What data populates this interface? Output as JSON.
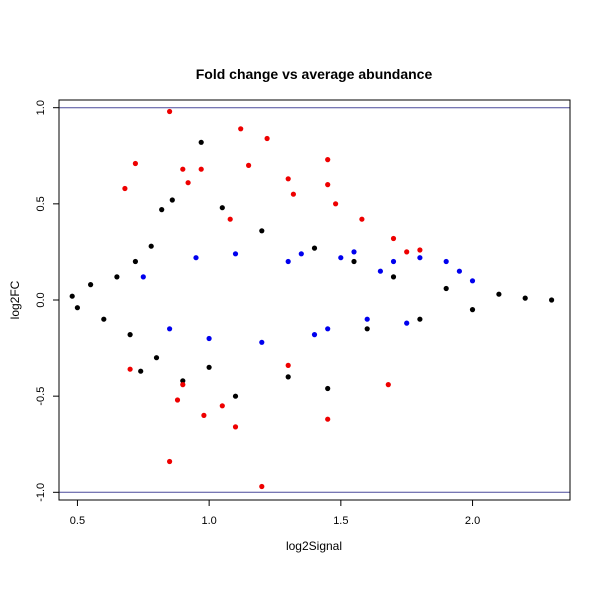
{
  "chart_data": {
    "type": "scatter",
    "title": "Fold change vs average abundance",
    "xlabel": "log2Signal",
    "ylabel": "log2FC",
    "xlim": [
      0.43,
      2.37
    ],
    "ylim": [
      -1.04,
      1.04
    ],
    "x_ticks": [
      0.5,
      1.0,
      1.5,
      2.0
    ],
    "x_tick_labels": [
      "0.5",
      "1.0",
      "1.5",
      "2.0"
    ],
    "y_ticks": [
      -1.0,
      -0.5,
      0.0,
      0.5,
      1.0
    ],
    "y_tick_labels": [
      "-1.0",
      "-0.5",
      "0.0",
      "0.5",
      "1.0"
    ],
    "grid": false,
    "reference_lines": [
      {
        "axis": "y",
        "value": 1.0,
        "color": "#4a4a9c"
      },
      {
        "axis": "y",
        "value": -1.0,
        "color": "#4a4a9c"
      }
    ],
    "series": [
      {
        "color": "#000000",
        "values": [
          [
            0.48,
            0.02
          ],
          [
            0.5,
            -0.04
          ],
          [
            0.55,
            0.08
          ],
          [
            0.6,
            -0.1
          ],
          [
            0.65,
            0.12
          ],
          [
            0.7,
            -0.18
          ],
          [
            0.72,
            0.2
          ],
          [
            0.78,
            0.28
          ],
          [
            0.8,
            -0.3
          ],
          [
            0.82,
            0.47
          ],
          [
            0.86,
            0.52
          ],
          [
            0.9,
            -0.42
          ],
          [
            0.97,
            0.82
          ],
          [
            1.0,
            -0.35
          ],
          [
            1.05,
            0.48
          ],
          [
            1.1,
            -0.5
          ],
          [
            1.2,
            0.36
          ],
          [
            1.3,
            -0.4
          ],
          [
            1.4,
            0.27
          ],
          [
            1.45,
            -0.46
          ],
          [
            1.55,
            0.2
          ],
          [
            1.6,
            -0.15
          ],
          [
            1.7,
            0.12
          ],
          [
            1.8,
            -0.1
          ],
          [
            1.9,
            0.06
          ],
          [
            2.0,
            -0.05
          ],
          [
            2.1,
            0.03
          ],
          [
            2.2,
            0.01
          ],
          [
            2.3,
            0.0
          ],
          [
            0.74,
            -0.37
          ]
        ]
      },
      {
        "color": "#0000ee",
        "values": [
          [
            0.75,
            0.12
          ],
          [
            0.85,
            -0.15
          ],
          [
            0.95,
            0.22
          ],
          [
            1.0,
            -0.2
          ],
          [
            1.1,
            0.24
          ],
          [
            1.2,
            -0.22
          ],
          [
            1.3,
            0.2
          ],
          [
            1.4,
            -0.18
          ],
          [
            1.5,
            0.22
          ],
          [
            1.55,
            0.25
          ],
          [
            1.6,
            -0.1
          ],
          [
            1.7,
            0.2
          ],
          [
            1.8,
            0.22
          ],
          [
            1.9,
            0.2
          ],
          [
            1.95,
            0.15
          ],
          [
            2.0,
            0.1
          ],
          [
            1.75,
            -0.12
          ],
          [
            1.65,
            0.15
          ],
          [
            1.45,
            -0.15
          ],
          [
            1.35,
            0.24
          ]
        ]
      },
      {
        "color": "#ee0000",
        "values": [
          [
            0.68,
            0.58
          ],
          [
            0.85,
            0.98
          ],
          [
            0.85,
            -0.84
          ],
          [
            0.9,
            0.68
          ],
          [
            0.92,
            0.61
          ],
          [
            0.97,
            0.68
          ],
          [
            1.08,
            0.42
          ],
          [
            1.12,
            0.89
          ],
          [
            1.15,
            0.7
          ],
          [
            1.2,
            -0.97
          ],
          [
            1.22,
            0.84
          ],
          [
            1.3,
            0.63
          ],
          [
            1.32,
            0.55
          ],
          [
            1.45,
            0.73
          ],
          [
            1.45,
            0.6
          ],
          [
            1.45,
            -0.62
          ],
          [
            1.48,
            0.5
          ],
          [
            1.68,
            -0.44
          ],
          [
            1.1,
            -0.66
          ],
          [
            0.98,
            -0.6
          ],
          [
            0.72,
            0.71
          ],
          [
            0.88,
            -0.52
          ],
          [
            1.05,
            -0.55
          ],
          [
            0.9,
            -0.44
          ],
          [
            1.3,
            -0.34
          ],
          [
            1.58,
            0.42
          ],
          [
            1.7,
            0.32
          ],
          [
            1.75,
            0.25
          ],
          [
            1.8,
            0.26
          ],
          [
            0.7,
            -0.36
          ]
        ]
      }
    ]
  }
}
